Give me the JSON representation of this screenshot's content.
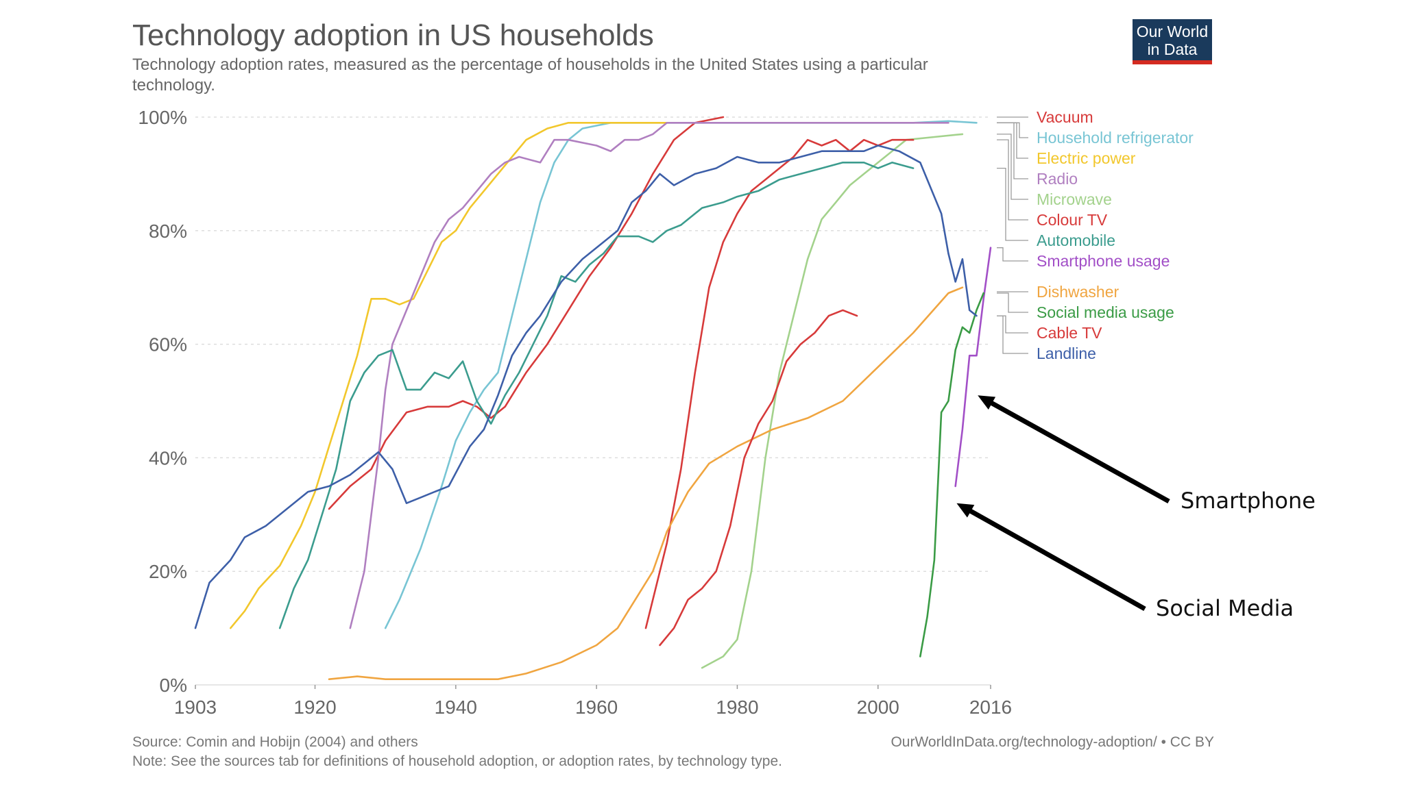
{
  "logo": {
    "line1": "Our World",
    "line2": "in Data",
    "bg": "#1a3a5c",
    "accent": "#d42b21"
  },
  "chart_data": {
    "type": "line",
    "title": "Technology adoption in US households",
    "subtitle_lines": [
      "Technology adoption rates, measured as the percentage of households in the United States using a particular",
      "technology."
    ],
    "xlim": [
      1903,
      2016
    ],
    "ylim": [
      0,
      100
    ],
    "x_ticks": [
      "1903",
      "1920",
      "1940",
      "1960",
      "1980",
      "2000",
      "2016"
    ],
    "y_ticks": [
      "0%",
      "20%",
      "40%",
      "60%",
      "80%",
      "100%"
    ],
    "grid": true,
    "legend_position": "right",
    "source": "Source: Comin and Hobijn (2004) and others",
    "note": "Note: See the sources tab for definitions of household adoption, or adoption rates, by technology type.",
    "url": "OurWorldInData.org/technology-adoption/ • CC BY",
    "series": [
      {
        "name": "Vacuum",
        "color": "#d73a3a",
        "points": [
          [
            1922,
            31
          ],
          [
            1925,
            35
          ],
          [
            1928,
            38
          ],
          [
            1930,
            43
          ],
          [
            1933,
            48
          ],
          [
            1936,
            49
          ],
          [
            1939,
            49
          ],
          [
            1941,
            50
          ],
          [
            1943,
            49
          ],
          [
            1945,
            47
          ],
          [
            1947,
            49
          ],
          [
            1950,
            55
          ],
          [
            1953,
            60
          ],
          [
            1956,
            66
          ],
          [
            1959,
            72
          ],
          [
            1962,
            77
          ],
          [
            1965,
            83
          ],
          [
            1968,
            90
          ],
          [
            1971,
            96
          ],
          [
            1974,
            99
          ],
          [
            1978,
            100
          ]
        ]
      },
      {
        "name": "Household refrigerator",
        "color": "#78c5d4",
        "points": [
          [
            1930,
            10
          ],
          [
            1932,
            15
          ],
          [
            1935,
            24
          ],
          [
            1938,
            35
          ],
          [
            1940,
            43
          ],
          [
            1942,
            48
          ],
          [
            1944,
            52
          ],
          [
            1946,
            55
          ],
          [
            1948,
            65
          ],
          [
            1950,
            75
          ],
          [
            1952,
            85
          ],
          [
            1954,
            92
          ],
          [
            1956,
            96
          ],
          [
            1958,
            98
          ],
          [
            1962,
            99
          ],
          [
            1966,
            99
          ],
          [
            1980,
            99
          ],
          [
            1995,
            99
          ],
          [
            2005,
            99
          ],
          [
            2010,
            99.3
          ],
          [
            2014,
            99
          ]
        ]
      },
      {
        "name": "Electric power",
        "color": "#f2c72c",
        "points": [
          [
            1908,
            10
          ],
          [
            1910,
            13
          ],
          [
            1912,
            17
          ],
          [
            1915,
            21
          ],
          [
            1918,
            28
          ],
          [
            1920,
            34
          ],
          [
            1922,
            42
          ],
          [
            1924,
            50
          ],
          [
            1926,
            58
          ],
          [
            1928,
            68
          ],
          [
            1930,
            68
          ],
          [
            1932,
            67
          ],
          [
            1934,
            68
          ],
          [
            1936,
            73
          ],
          [
            1938,
            78
          ],
          [
            1940,
            80
          ],
          [
            1942,
            84
          ],
          [
            1944,
            87
          ],
          [
            1946,
            90
          ],
          [
            1948,
            93
          ],
          [
            1950,
            96
          ],
          [
            1953,
            98
          ],
          [
            1956,
            99
          ],
          [
            1960,
            99
          ],
          [
            1970,
            99
          ]
        ]
      },
      {
        "name": "Radio",
        "color": "#b07fc0",
        "points": [
          [
            1925,
            10
          ],
          [
            1926,
            15
          ],
          [
            1927,
            20
          ],
          [
            1928,
            30
          ],
          [
            1929,
            40
          ],
          [
            1930,
            52
          ],
          [
            1931,
            60
          ],
          [
            1933,
            66
          ],
          [
            1935,
            72
          ],
          [
            1937,
            78
          ],
          [
            1939,
            82
          ],
          [
            1941,
            84
          ],
          [
            1943,
            87
          ],
          [
            1945,
            90
          ],
          [
            1947,
            92
          ],
          [
            1949,
            93
          ],
          [
            1952,
            92
          ],
          [
            1954,
            96
          ],
          [
            1956,
            96
          ],
          [
            1960,
            95
          ],
          [
            1962,
            94
          ],
          [
            1964,
            96
          ],
          [
            1966,
            96
          ],
          [
            1968,
            97
          ],
          [
            1970,
            99
          ],
          [
            1980,
            99
          ],
          [
            2010,
            99
          ]
        ]
      },
      {
        "name": "Microwave",
        "color": "#a3d28c",
        "points": [
          [
            1975,
            3
          ],
          [
            1978,
            5
          ],
          [
            1980,
            8
          ],
          [
            1982,
            20
          ],
          [
            1984,
            40
          ],
          [
            1986,
            55
          ],
          [
            1988,
            65
          ],
          [
            1990,
            75
          ],
          [
            1992,
            82
          ],
          [
            1994,
            85
          ],
          [
            1996,
            88
          ],
          [
            1998,
            90
          ],
          [
            2000,
            92
          ],
          [
            2002,
            94
          ],
          [
            2004,
            96
          ],
          [
            2008,
            96.5
          ],
          [
            2012,
            97
          ]
        ]
      },
      {
        "name": "Colour TV",
        "color": "#d73a3a",
        "points": [
          [
            1967,
            10
          ],
          [
            1968,
            15
          ],
          [
            1970,
            25
          ],
          [
            1972,
            38
          ],
          [
            1974,
            55
          ],
          [
            1976,
            70
          ],
          [
            1978,
            78
          ],
          [
            1980,
            83
          ],
          [
            1982,
            87
          ],
          [
            1984,
            89
          ],
          [
            1986,
            91
          ],
          [
            1988,
            93
          ],
          [
            1990,
            96
          ],
          [
            1992,
            95
          ],
          [
            1994,
            96
          ],
          [
            1996,
            94
          ],
          [
            1998,
            96
          ],
          [
            2000,
            95
          ],
          [
            2002,
            96
          ],
          [
            2005,
            96
          ]
        ]
      },
      {
        "name": "Automobile",
        "color": "#3b9c8e",
        "points": [
          [
            1915,
            10
          ],
          [
            1917,
            17
          ],
          [
            1919,
            22
          ],
          [
            1921,
            30
          ],
          [
            1923,
            38
          ],
          [
            1925,
            50
          ],
          [
            1927,
            55
          ],
          [
            1929,
            58
          ],
          [
            1931,
            59
          ],
          [
            1933,
            52
          ],
          [
            1935,
            52
          ],
          [
            1937,
            55
          ],
          [
            1939,
            54
          ],
          [
            1941,
            57
          ],
          [
            1943,
            50
          ],
          [
            1945,
            46
          ],
          [
            1947,
            51
          ],
          [
            1949,
            55
          ],
          [
            1951,
            60
          ],
          [
            1953,
            65
          ],
          [
            1955,
            72
          ],
          [
            1957,
            71
          ],
          [
            1959,
            74
          ],
          [
            1961,
            76
          ],
          [
            1963,
            79
          ],
          [
            1966,
            79
          ],
          [
            1968,
            78
          ],
          [
            1970,
            80
          ],
          [
            1972,
            81
          ],
          [
            1975,
            84
          ],
          [
            1978,
            85
          ],
          [
            1980,
            86
          ],
          [
            1983,
            87
          ],
          [
            1986,
            89
          ],
          [
            1989,
            90
          ],
          [
            1992,
            91
          ],
          [
            1995,
            92
          ],
          [
            1998,
            92
          ],
          [
            2000,
            91
          ],
          [
            2002,
            92
          ],
          [
            2005,
            91
          ]
        ]
      },
      {
        "name": "Smartphone usage",
        "color": "#a24fc7",
        "points": [
          [
            2011,
            35
          ],
          [
            2012,
            45
          ],
          [
            2013,
            58
          ],
          [
            2014,
            58
          ],
          [
            2015,
            68
          ],
          [
            2016,
            77
          ]
        ]
      },
      {
        "name": "Dishwasher",
        "color": "#f0a540",
        "points": [
          [
            1922,
            1
          ],
          [
            1926,
            1.5
          ],
          [
            1930,
            1
          ],
          [
            1936,
            1
          ],
          [
            1946,
            1
          ],
          [
            1950,
            2
          ],
          [
            1955,
            4
          ],
          [
            1960,
            7
          ],
          [
            1963,
            10
          ],
          [
            1966,
            16
          ],
          [
            1968,
            20
          ],
          [
            1970,
            27
          ],
          [
            1973,
            34
          ],
          [
            1976,
            39
          ],
          [
            1980,
            42
          ],
          [
            1985,
            45
          ],
          [
            1990,
            47
          ],
          [
            1995,
            50
          ],
          [
            2000,
            56
          ],
          [
            2005,
            62
          ],
          [
            2010,
            69
          ],
          [
            2012,
            70
          ]
        ]
      },
      {
        "name": "Social media usage",
        "color": "#3a9b45",
        "points": [
          [
            2006,
            5
          ],
          [
            2007,
            12
          ],
          [
            2008,
            22
          ],
          [
            2009,
            48
          ],
          [
            2010,
            50
          ],
          [
            2011,
            59
          ],
          [
            2012,
            63
          ],
          [
            2013,
            62
          ],
          [
            2014,
            66
          ],
          [
            2015,
            69
          ]
        ]
      },
      {
        "name": "Cable TV",
        "color": "#d73a3a",
        "points": [
          [
            1969,
            7
          ],
          [
            1971,
            10
          ],
          [
            1973,
            15
          ],
          [
            1975,
            17
          ],
          [
            1977,
            20
          ],
          [
            1979,
            28
          ],
          [
            1981,
            40
          ],
          [
            1983,
            46
          ],
          [
            1985,
            50
          ],
          [
            1987,
            57
          ],
          [
            1989,
            60
          ],
          [
            1991,
            62
          ],
          [
            1993,
            65
          ],
          [
            1995,
            66
          ],
          [
            1997,
            65
          ]
        ]
      },
      {
        "name": "Landline",
        "color": "#3d5fa8",
        "points": [
          [
            1903,
            10
          ],
          [
            1905,
            18
          ],
          [
            1908,
            22
          ],
          [
            1910,
            26
          ],
          [
            1913,
            28
          ],
          [
            1916,
            31
          ],
          [
            1919,
            34
          ],
          [
            1922,
            35
          ],
          [
            1925,
            37
          ],
          [
            1927,
            39
          ],
          [
            1929,
            41
          ],
          [
            1931,
            38
          ],
          [
            1933,
            32
          ],
          [
            1935,
            33
          ],
          [
            1937,
            34
          ],
          [
            1939,
            35
          ],
          [
            1942,
            42
          ],
          [
            1944,
            45
          ],
          [
            1946,
            51
          ],
          [
            1948,
            58
          ],
          [
            1950,
            62
          ],
          [
            1952,
            65
          ],
          [
            1955,
            71
          ],
          [
            1958,
            75
          ],
          [
            1961,
            78
          ],
          [
            1963,
            80
          ],
          [
            1965,
            85
          ],
          [
            1967,
            87
          ],
          [
            1969,
            90
          ],
          [
            1971,
            88
          ],
          [
            1974,
            90
          ],
          [
            1977,
            91
          ],
          [
            1980,
            93
          ],
          [
            1983,
            92
          ],
          [
            1986,
            92
          ],
          [
            1989,
            93
          ],
          [
            1992,
            94
          ],
          [
            1995,
            94
          ],
          [
            1998,
            94
          ],
          [
            2000,
            95
          ],
          [
            2003,
            94
          ],
          [
            2006,
            92
          ],
          [
            2009,
            83
          ],
          [
            2010,
            76
          ],
          [
            2011,
            71
          ],
          [
            2012,
            75
          ],
          [
            2013,
            66
          ],
          [
            2014,
            65
          ]
        ]
      }
    ],
    "legend_groups": [
      [
        "Vacuum",
        "Household refrigerator",
        "Electric power",
        "Radio",
        "Microwave",
        "Colour TV",
        "Automobile",
        "Smartphone usage"
      ],
      [
        "Dishwasher",
        "Social media usage",
        "Cable TV",
        "Landline"
      ]
    ]
  },
  "annotations": [
    {
      "label": "Smartphone",
      "target": [
        2013,
        51
      ]
    },
    {
      "label": "Social Media",
      "target": [
        2010,
        32
      ]
    }
  ]
}
